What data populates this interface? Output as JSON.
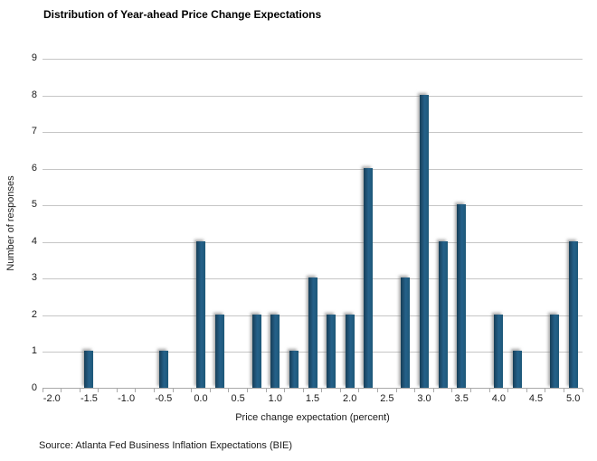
{
  "title": "Distribution of Year-ahead Price Change Expectations",
  "source": "Source: Atlanta Fed Business Inflation Expectations (BIE)",
  "chart_data": {
    "type": "bar",
    "title": "Distribution of Year-ahead Price Change Expectations",
    "xlabel": "Price change expectation (percent)",
    "ylabel": "Number of responses",
    "ylim": [
      0,
      9
    ],
    "x_range": [
      -2.0,
      5.0
    ],
    "x_step": 0.25,
    "grid": true,
    "legend": "none",
    "bar_color": "#1d5878",
    "gridline_color": "#c6c6c6",
    "axis_color": "#a9a9a9",
    "y_ticks": [
      "0",
      "1",
      "2",
      "3",
      "4",
      "5",
      "6",
      "7",
      "8",
      "9"
    ],
    "x_tick_labels": [
      "-2.0",
      "-1.5",
      "-1.0",
      "-0.5",
      "0.0",
      "0.5",
      "1.0",
      "1.5",
      "2.0",
      "2.5",
      "3.0",
      "3.5",
      "4.0",
      "4.5",
      "5.0"
    ],
    "bars": [
      {
        "x": -1.5,
        "y": 1
      },
      {
        "x": -0.5,
        "y": 1
      },
      {
        "x": 0.0,
        "y": 4
      },
      {
        "x": 0.25,
        "y": 2
      },
      {
        "x": 0.75,
        "y": 2
      },
      {
        "x": 1.0,
        "y": 2
      },
      {
        "x": 1.25,
        "y": 1
      },
      {
        "x": 1.5,
        "y": 3
      },
      {
        "x": 1.75,
        "y": 2
      },
      {
        "x": 2.0,
        "y": 2
      },
      {
        "x": 2.25,
        "y": 6
      },
      {
        "x": 2.75,
        "y": 3
      },
      {
        "x": 3.0,
        "y": 8
      },
      {
        "x": 3.25,
        "y": 4
      },
      {
        "x": 3.5,
        "y": 5
      },
      {
        "x": 4.0,
        "y": 2
      },
      {
        "x": 4.25,
        "y": 1
      },
      {
        "x": 4.75,
        "y": 2
      },
      {
        "x": 5.0,
        "y": 4
      }
    ]
  }
}
